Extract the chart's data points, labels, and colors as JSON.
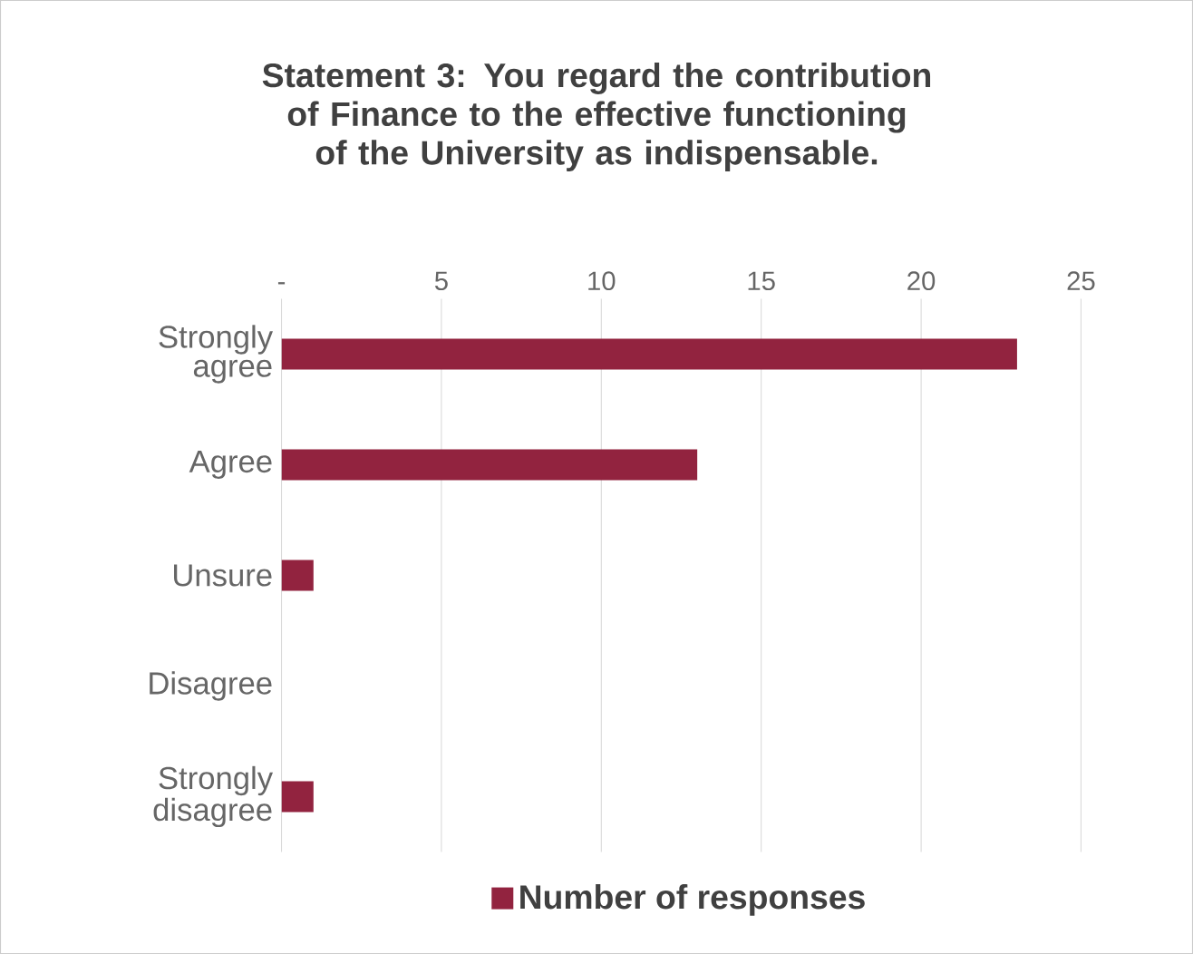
{
  "chart_data": {
    "type": "bar",
    "orientation": "horizontal",
    "title": "Statement 3: You regard the contribution of Finance to the effective functioning of the University as indispensable.",
    "categories": [
      "Strongly agree",
      "Agree",
      "Unsure",
      "Disagree",
      "Strongly disagree"
    ],
    "series": [
      {
        "name": "Number of responses",
        "color": "#92233f",
        "values": [
          23,
          13,
          1,
          0,
          1
        ]
      }
    ],
    "xlim": [
      0,
      25
    ],
    "xticks": [
      {
        "value": 0,
        "label": "-"
      },
      5,
      10,
      15,
      20,
      25
    ],
    "grid": "x",
    "legend": "bottom"
  }
}
